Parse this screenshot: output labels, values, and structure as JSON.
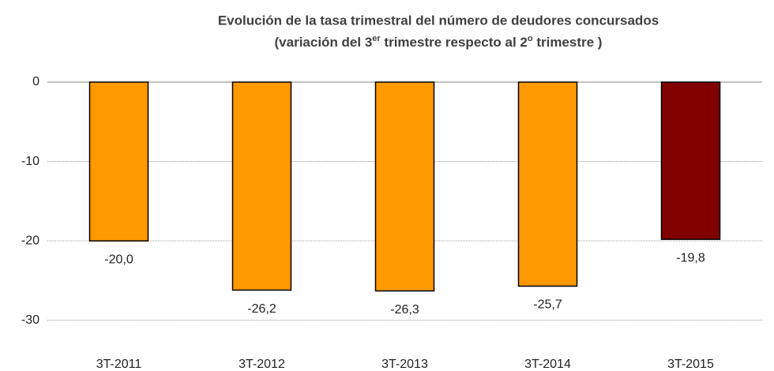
{
  "chart_data": {
    "type": "bar",
    "title": "Evolución  de la tasa trimestral del número de deudores concursados",
    "subtitle": [
      "(variación del 3",
      "er",
      " trimestre respecto al 2",
      "o",
      " trimestre )"
    ],
    "categories": [
      "3T-2011",
      "3T-2012",
      "3T-2013",
      "3T-2014",
      "3T-2015"
    ],
    "values": [
      -20.0,
      -26.2,
      -26.3,
      -25.7,
      -19.8
    ],
    "value_labels": [
      "-20,0",
      "-26,2",
      "-26,3",
      "-25,7",
      "-19,8"
    ],
    "colors": [
      "#ff9900",
      "#ff9900",
      "#ff9900",
      "#ff9900",
      "#800000"
    ],
    "ylim": [
      -34,
      0
    ],
    "yticks": [
      0,
      -10,
      -20,
      -30
    ],
    "grid": true
  }
}
